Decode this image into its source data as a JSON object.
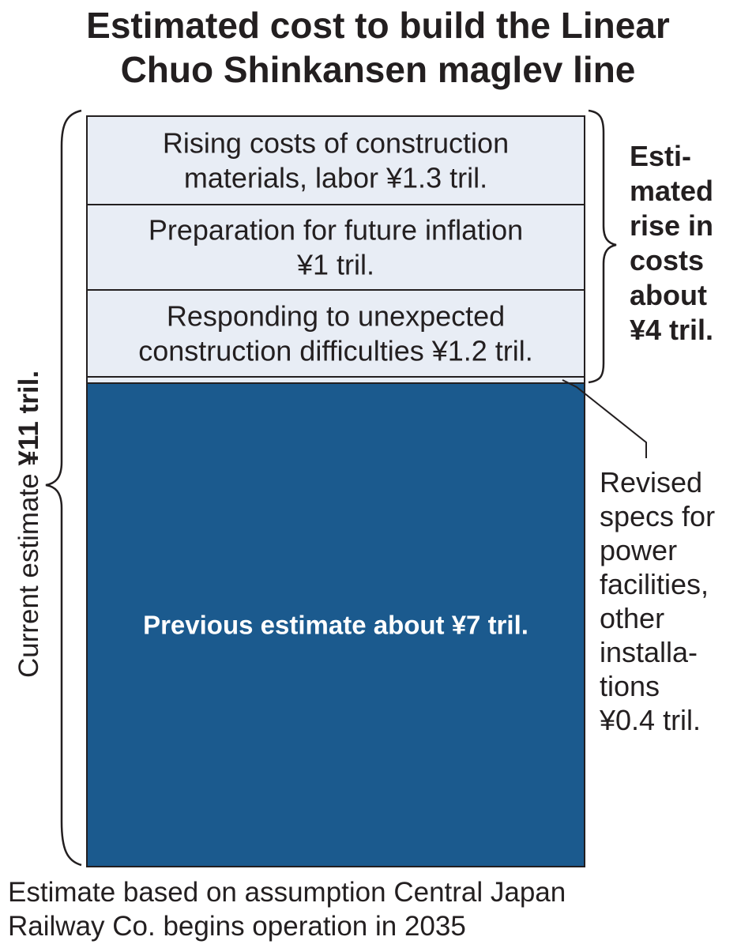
{
  "title_lines": [
    "Estimated cost to build the Linear",
    "Chuo Shinkansen maglev line"
  ],
  "footnote_lines": [
    "Estimate based on assumption Central Japan",
    "Railway Co. begins operation in 2035"
  ],
  "current_estimate_label": {
    "regular": "Current estimate ",
    "bold": "¥11 tril."
  },
  "rise_label_lines": [
    "Esti-",
    "mated",
    "rise in",
    "costs",
    "about",
    "¥4 tril."
  ],
  "revised_label_lines": [
    "Revised",
    "specs for",
    "power",
    "facilities,",
    "other",
    "installa-",
    "tions",
    "¥0.4 tril."
  ],
  "chart_data": {
    "type": "bar",
    "stacked": true,
    "unit": "tril. yen",
    "segments": [
      {
        "label_lines": [
          "Previous estimate about ¥7 tril."
        ],
        "value": 7,
        "color": "#1b5a8e",
        "text_color": "#ffffff"
      },
      {
        "label_lines": [
          "Revised specs for power facilities, other installations ¥0.4 tril."
        ],
        "value": 0.4,
        "color": "#e8edf5",
        "text_color": "#231f20"
      },
      {
        "label_lines": [
          "Responding to unexpected",
          "construction difficulties ¥1.2 tril."
        ],
        "value": 1.2,
        "color": "#e8edf5",
        "text_color": "#231f20"
      },
      {
        "label_lines": [
          "Preparation for future inflation",
          "¥1 tril."
        ],
        "value": 1,
        "color": "#e8edf5",
        "text_color": "#231f20"
      },
      {
        "label_lines": [
          "Rising costs of construction",
          "materials, labor ¥1.3 tril."
        ],
        "value": 1.3,
        "color": "#e8edf5",
        "text_color": "#231f20"
      }
    ],
    "total": 11,
    "estimated_rise": 4
  }
}
